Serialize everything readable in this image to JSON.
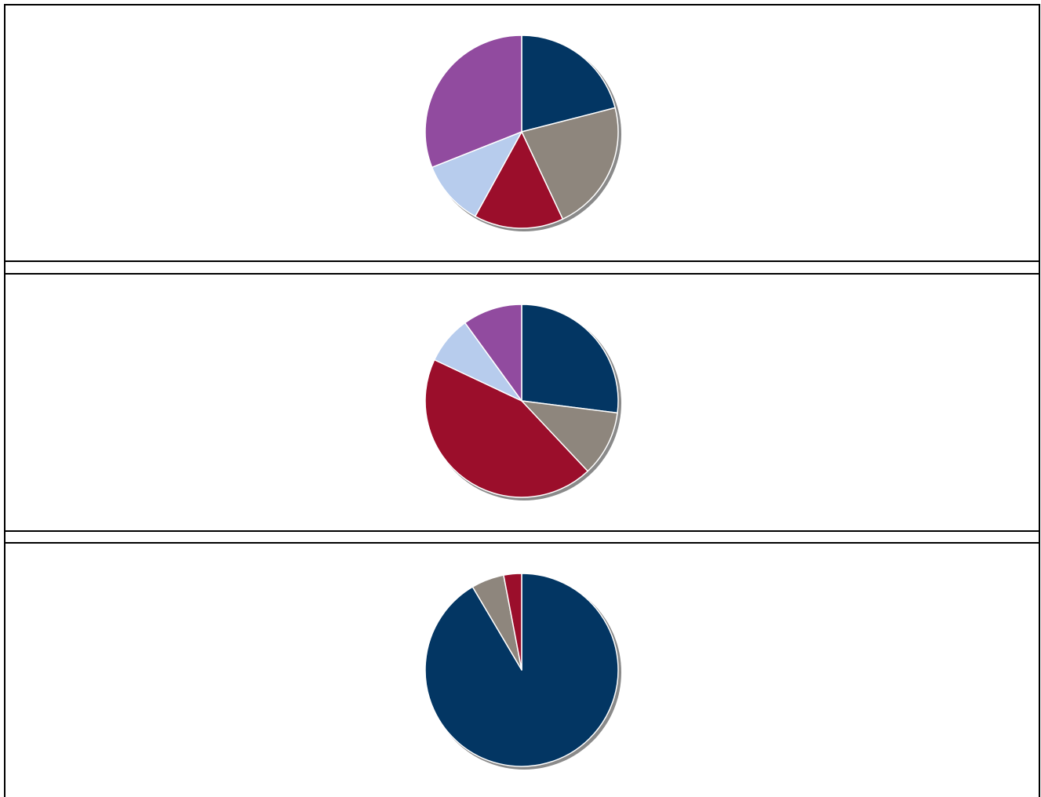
{
  "chart_data": [
    {
      "type": "pie",
      "title": "",
      "start_angle_deg": 0,
      "direction": "clockwise",
      "slices": [
        {
          "value": 21,
          "color": "#033663"
        },
        {
          "value": 22,
          "color": "#8e867d"
        },
        {
          "value": 15,
          "color": "#9b0e2b"
        },
        {
          "value": 11,
          "color": "#b7cced"
        },
        {
          "value": 31,
          "color": "#914b9f"
        }
      ]
    },
    {
      "type": "pie",
      "title": "",
      "start_angle_deg": 0,
      "direction": "clockwise",
      "slices": [
        {
          "value": 27,
          "color": "#033663"
        },
        {
          "value": 11,
          "color": "#8e867d"
        },
        {
          "value": 44,
          "color": "#9b0e2b"
        },
        {
          "value": 8,
          "color": "#b7cced"
        },
        {
          "value": 10,
          "color": "#914b9f"
        }
      ]
    },
    {
      "type": "pie",
      "title": "",
      "start_angle_deg": 0,
      "direction": "clockwise",
      "slices": [
        {
          "value": 91.5,
          "color": "#033663"
        },
        {
          "value": 5.5,
          "color": "#8e867d"
        },
        {
          "value": 3,
          "color": "#9b0e2b"
        }
      ]
    }
  ]
}
